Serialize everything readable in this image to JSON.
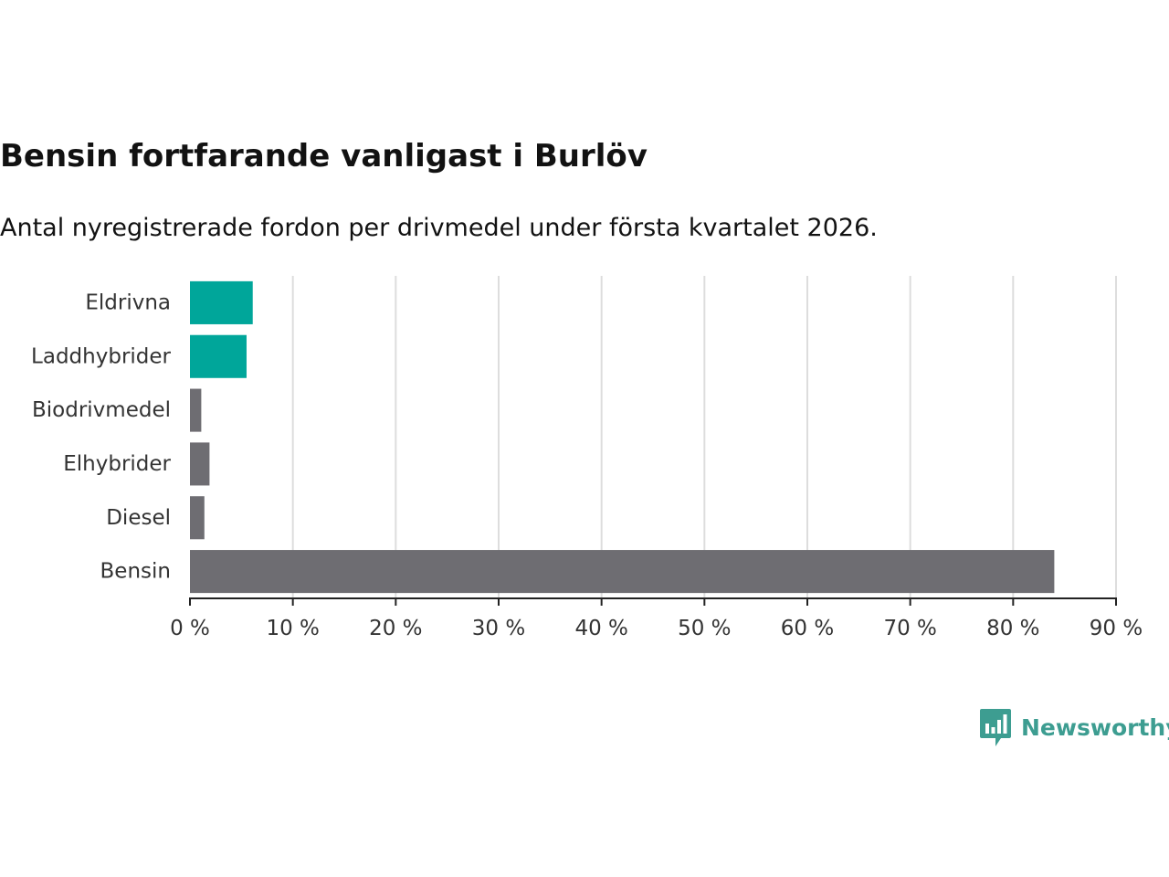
{
  "colors": {
    "highlight": "#00a69a",
    "default": "#6e6d72",
    "grid": "#dddddd",
    "axis": "#222222",
    "brand": "#3d9d91"
  },
  "logo": {
    "name": "Newsworthy",
    "icon": "newsworthy-logo-icon"
  },
  "chart_data": {
    "type": "bar",
    "orientation": "horizontal",
    "title": "Bensin fortfarande vanligast i Burlöv",
    "subtitle": "Antal nyregistrerade fordon per drivmedel under första kvartalet 2026.",
    "xlabel": "",
    "ylabel": "",
    "unit": "%",
    "xlim": [
      0,
      90
    ],
    "ticks": [
      0,
      10,
      20,
      30,
      40,
      50,
      60,
      70,
      80,
      90
    ],
    "tick_labels": [
      "0 %",
      "10 %",
      "20 %",
      "30 %",
      "40 %",
      "50 %",
      "60 %",
      "70 %",
      "80 %",
      "90 %"
    ],
    "grid": true,
    "categories": [
      "Eldrivna",
      "Laddhybrider",
      "Biodrivmedel",
      "Elhybrider",
      "Diesel",
      "Bensin"
    ],
    "values": [
      6.1,
      5.5,
      1.1,
      1.9,
      1.4,
      84.0
    ],
    "highlighted": [
      true,
      true,
      false,
      false,
      false,
      false
    ]
  }
}
